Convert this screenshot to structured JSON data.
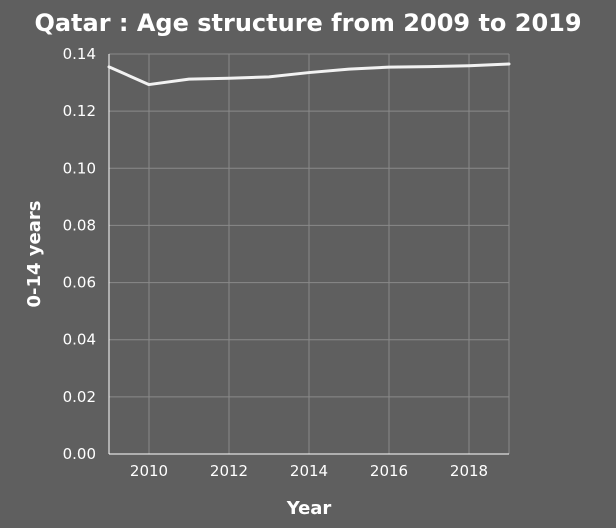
{
  "chart_data": {
    "type": "line",
    "title": "Qatar : Age structure from 2009 to 2019",
    "xlabel": "Year",
    "ylabel": "0-14 years",
    "xlim": [
      2009,
      2019
    ],
    "ylim": [
      0,
      0.14
    ],
    "grid": true,
    "x_ticks": [
      2010,
      2012,
      2014,
      2016,
      2018
    ],
    "x_tick_labels": [
      "2010",
      "2012",
      "2014",
      "2016",
      "2018"
    ],
    "y_ticks": [
      0,
      0.02,
      0.04,
      0.06,
      0.08,
      0.1,
      0.12,
      0.14
    ],
    "y_tick_labels": [
      "0.00",
      "0.02",
      "0.04",
      "0.06",
      "0.08",
      "0.10",
      "0.12",
      "0.14"
    ],
    "series": [
      {
        "name": "0-14 years",
        "x": [
          2009,
          2010,
          2011,
          2012,
          2013,
          2014,
          2015,
          2016,
          2017,
          2018,
          2019
        ],
        "values": [
          0.1355,
          0.1293,
          0.1312,
          0.1315,
          0.132,
          0.1335,
          0.1347,
          0.1354,
          0.1356,
          0.1359,
          0.1365
        ]
      }
    ],
    "colors": {
      "background": "#5f5f5f",
      "grid": "#8a8a8a",
      "line": "#f2f2f2",
      "text": "#ffffff"
    }
  }
}
